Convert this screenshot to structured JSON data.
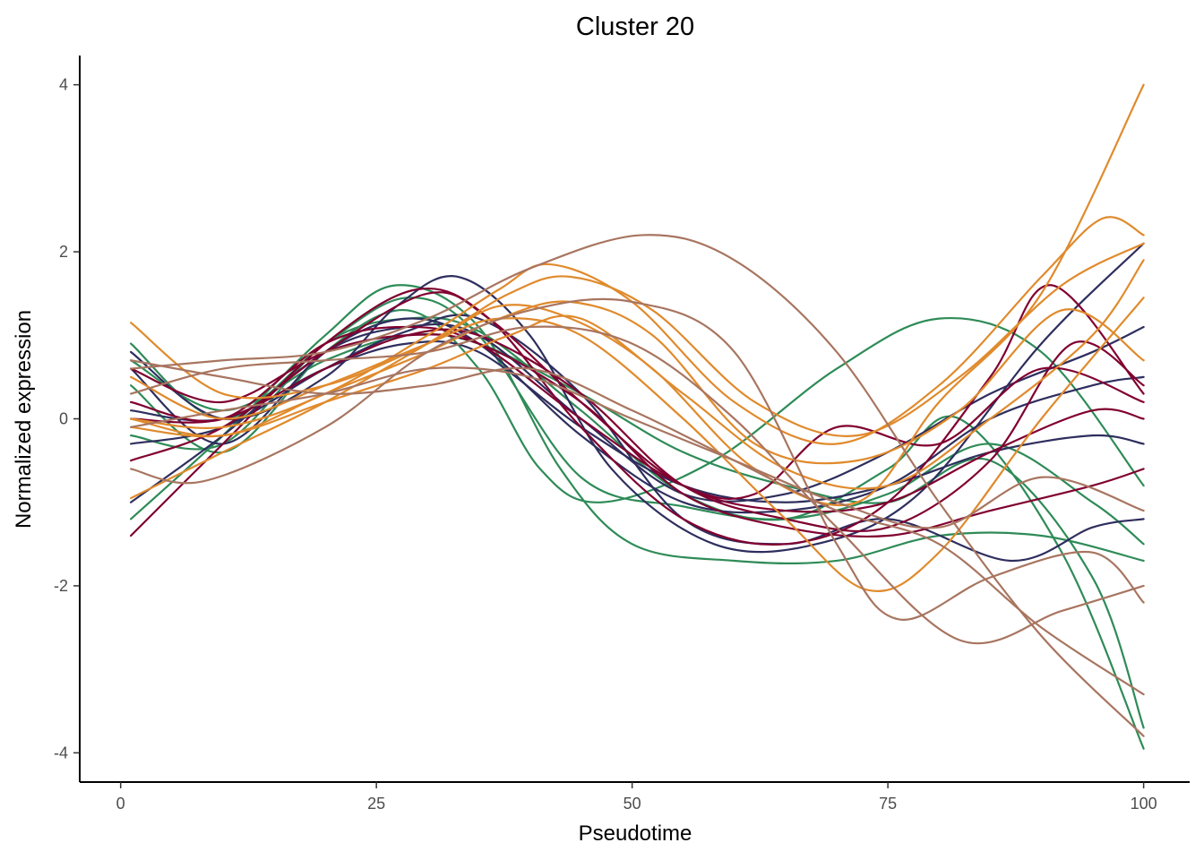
{
  "chart_data": {
    "type": "line",
    "title": "Cluster 20",
    "xlabel": "Pseudotime",
    "ylabel": "Normalized expression",
    "xlim": [
      -4,
      104.5
    ],
    "ylim": [
      -4.35,
      4.35
    ],
    "xticks": [
      0,
      25,
      50,
      75,
      100
    ],
    "xtick_labels": [
      "0",
      "25",
      "50",
      "75",
      "100"
    ],
    "yticks": [
      -4,
      -2,
      0,
      2,
      4
    ],
    "ytick_labels": [
      "-4",
      "-2",
      "0",
      "2",
      "4"
    ],
    "grid": false,
    "legend": "none",
    "colors": {
      "green": "#2e8b57",
      "navy": "#2e2e5e",
      "crimson": "#800030",
      "orange": "#e08a2c",
      "brown": "#a87560"
    },
    "series": [
      {
        "color": "green",
        "x": [
          1,
          10,
          20,
          28,
          35,
          45,
          55,
          65,
          75,
          85,
          95,
          100
        ],
        "values": [
          0.9,
          0.0,
          0.9,
          1.45,
          1.0,
          -0.7,
          -1.05,
          -1.2,
          -0.9,
          -0.3,
          -1.0,
          -1.5
        ]
      },
      {
        "color": "green",
        "x": [
          1,
          10,
          20,
          27,
          35,
          43,
          50,
          60,
          70,
          80,
          90,
          100
        ],
        "values": [
          -1.2,
          -0.2,
          1.0,
          1.6,
          1.1,
          -0.6,
          -1.5,
          -1.7,
          -1.7,
          -1.4,
          -1.4,
          -1.7
        ]
      },
      {
        "color": "green",
        "x": [
          1,
          10,
          20,
          28,
          35,
          41,
          47,
          58,
          70,
          80,
          90,
          100
        ],
        "values": [
          0.4,
          -0.4,
          0.8,
          1.3,
          0.6,
          -0.6,
          -1.0,
          -0.5,
          0.6,
          1.2,
          0.8,
          -0.8
        ]
      },
      {
        "color": "green",
        "x": [
          1,
          10,
          20,
          28,
          35,
          45,
          55,
          65,
          75,
          82,
          92,
          100
        ],
        "values": [
          -0.2,
          -0.3,
          0.9,
          1.2,
          1.05,
          0.1,
          -0.9,
          -1.2,
          -0.6,
          0.0,
          -1.6,
          -3.95
        ]
      },
      {
        "color": "green",
        "x": [
          1,
          10,
          20,
          28,
          35,
          45,
          55,
          65,
          75,
          85,
          95,
          100
        ],
        "values": [
          0.7,
          0.1,
          0.7,
          1.0,
          0.9,
          0.3,
          -0.4,
          -0.8,
          -1.0,
          -0.5,
          -1.9,
          -3.7
        ]
      },
      {
        "color": "navy",
        "x": [
          1,
          10,
          20,
          27,
          33,
          40,
          48,
          58,
          68,
          78,
          90,
          100
        ],
        "values": [
          0.8,
          0.0,
          0.5,
          1.35,
          1.7,
          1.0,
          -0.6,
          -1.5,
          -1.5,
          -0.9,
          0.9,
          2.1
        ]
      },
      {
        "color": "navy",
        "x": [
          1,
          10,
          20,
          28,
          35,
          45,
          55,
          65,
          75,
          85,
          95,
          100
        ],
        "values": [
          -1.0,
          -0.2,
          0.8,
          1.1,
          1.0,
          0.0,
          -0.9,
          -0.9,
          -0.4,
          0.3,
          0.8,
          1.1
        ]
      },
      {
        "color": "navy",
        "x": [
          1,
          10,
          20,
          28,
          35,
          45,
          55,
          65,
          75,
          87,
          95,
          100
        ],
        "values": [
          -0.3,
          -0.1,
          0.6,
          1.05,
          1.2,
          0.3,
          -1.2,
          -1.5,
          -1.2,
          -1.7,
          -1.3,
          -1.2
        ]
      },
      {
        "color": "navy",
        "x": [
          1,
          10,
          20,
          28,
          35,
          45,
          55,
          65,
          75,
          85,
          95,
          100
        ],
        "values": [
          0.6,
          -0.3,
          0.8,
          1.2,
          0.9,
          -0.2,
          -1.0,
          -1.1,
          -0.8,
          0.0,
          0.4,
          0.5
        ]
      },
      {
        "color": "navy",
        "x": [
          1,
          10,
          20,
          28,
          35,
          45,
          55,
          65,
          75,
          85,
          95,
          100
        ],
        "values": [
          0.1,
          0.0,
          0.6,
          0.9,
          0.8,
          -0.1,
          -0.8,
          -1.0,
          -0.8,
          -0.4,
          -0.2,
          -0.3
        ]
      },
      {
        "color": "crimson",
        "x": [
          1,
          10,
          20,
          29,
          36,
          45,
          55,
          65,
          75,
          85,
          91,
          100
        ],
        "values": [
          -1.4,
          -0.3,
          0.9,
          1.55,
          1.2,
          -0.1,
          -1.2,
          -1.5,
          -1.0,
          0.5,
          1.6,
          0.3
        ]
      },
      {
        "color": "crimson",
        "x": [
          1,
          10,
          20,
          30,
          36,
          45,
          55,
          65,
          75,
          85,
          95,
          100
        ],
        "values": [
          -0.5,
          -0.1,
          0.8,
          1.5,
          1.2,
          0.2,
          -0.8,
          -1.1,
          -1.0,
          -0.4,
          0.1,
          0.0
        ]
      },
      {
        "color": "crimson",
        "x": [
          1,
          10,
          20,
          28,
          35,
          45,
          55,
          62,
          70,
          80,
          90,
          100
        ],
        "values": [
          0.2,
          0.0,
          0.9,
          1.1,
          0.9,
          0.0,
          -0.8,
          -0.9,
          -0.1,
          -0.3,
          0.6,
          0.2
        ]
      },
      {
        "color": "crimson",
        "x": [
          1,
          10,
          20,
          28,
          35,
          45,
          55,
          65,
          75,
          85,
          95,
          100
        ],
        "values": [
          0.6,
          0.2,
          0.8,
          1.0,
          0.9,
          0.2,
          -0.9,
          -1.3,
          -1.4,
          -1.1,
          -0.8,
          -0.6
        ]
      },
      {
        "color": "crimson",
        "x": [
          1,
          10,
          20,
          28,
          35,
          45,
          55,
          65,
          75,
          85,
          93,
          100
        ],
        "values": [
          0.0,
          0.0,
          0.6,
          1.0,
          1.0,
          0.3,
          -0.8,
          -1.2,
          -1.3,
          -0.5,
          0.9,
          0.4
        ]
      },
      {
        "color": "orange",
        "x": [
          1,
          10,
          20,
          30,
          37,
          44,
          52,
          62,
          72,
          80,
          90,
          100
        ],
        "values": [
          1.15,
          0.3,
          0.4,
          0.9,
          1.35,
          1.2,
          0.6,
          -0.6,
          -1.0,
          0.2,
          1.5,
          4.0
        ]
      },
      {
        "color": "orange",
        "x": [
          1,
          10,
          20,
          30,
          37,
          42,
          50,
          60,
          70,
          80,
          90,
          96,
          100
        ],
        "values": [
          0.0,
          -0.1,
          0.3,
          1.0,
          1.55,
          1.85,
          1.4,
          0.2,
          -0.3,
          0.4,
          1.7,
          2.4,
          2.2
        ]
      },
      {
        "color": "orange",
        "x": [
          1,
          10,
          20,
          30,
          38,
          44,
          52,
          62,
          72,
          82,
          92,
          100
        ],
        "values": [
          -0.95,
          -0.4,
          0.2,
          0.9,
          1.5,
          1.7,
          1.3,
          0.2,
          -0.2,
          0.5,
          1.6,
          2.1
        ]
      },
      {
        "color": "orange",
        "x": [
          1,
          10,
          20,
          30,
          37,
          44,
          52,
          62,
          72,
          82,
          92,
          100
        ],
        "values": [
          0.0,
          -0.2,
          0.3,
          0.8,
          1.2,
          1.4,
          1.0,
          -0.3,
          -0.5,
          0.1,
          1.3,
          0.7
        ]
      },
      {
        "color": "orange",
        "x": [
          1,
          10,
          20,
          30,
          37,
          45,
          55,
          65,
          73,
          80,
          90,
          100
        ],
        "values": [
          0.5,
          0.0,
          0.4,
          0.9,
          1.2,
          1.0,
          0.0,
          -1.2,
          -2.05,
          -1.6,
          0.0,
          1.45
        ]
      },
      {
        "color": "orange",
        "x": [
          1,
          10,
          20,
          30,
          38,
          45,
          55,
          65,
          75,
          85,
          95,
          100
        ],
        "values": [
          -0.1,
          -0.2,
          0.2,
          0.6,
          1.0,
          1.2,
          0.3,
          -0.6,
          -0.8,
          0.0,
          1.0,
          1.9
        ]
      },
      {
        "color": "brown",
        "x": [
          1,
          10,
          20,
          30,
          40,
          51,
          60,
          70,
          80,
          90,
          100
        ],
        "values": [
          0.6,
          0.7,
          0.8,
          1.2,
          1.8,
          2.2,
          1.9,
          0.8,
          -1.0,
          -2.6,
          -3.8
        ]
      },
      {
        "color": "brown",
        "x": [
          1,
          8,
          20,
          30,
          40,
          50,
          60,
          70,
          76,
          85,
          95,
          100
        ],
        "values": [
          -0.6,
          -0.75,
          -0.1,
          0.8,
          1.3,
          1.4,
          0.8,
          -1.5,
          -2.4,
          -1.9,
          -1.6,
          -2.2
        ]
      },
      {
        "color": "brown",
        "x": [
          1,
          10,
          20,
          30,
          40,
          50,
          60,
          70,
          82,
          92,
          100
        ],
        "values": [
          0.3,
          0.6,
          0.7,
          0.8,
          1.1,
          0.9,
          0.0,
          -1.3,
          -2.65,
          -2.3,
          -2.0
        ]
      },
      {
        "color": "brown",
        "x": [
          1,
          10,
          20,
          30,
          40,
          50,
          60,
          70,
          80,
          90,
          100
        ],
        "values": [
          0.7,
          0.5,
          0.3,
          0.4,
          0.6,
          0.1,
          -0.5,
          -1.1,
          -1.5,
          -2.5,
          -3.3
        ]
      },
      {
        "color": "brown",
        "x": [
          1,
          10,
          20,
          30,
          40,
          50,
          60,
          70,
          80,
          90,
          100
        ],
        "values": [
          -0.1,
          0.1,
          0.3,
          0.6,
          0.5,
          0.0,
          -0.5,
          -1.0,
          -1.3,
          -0.7,
          -1.1
        ]
      }
    ]
  }
}
